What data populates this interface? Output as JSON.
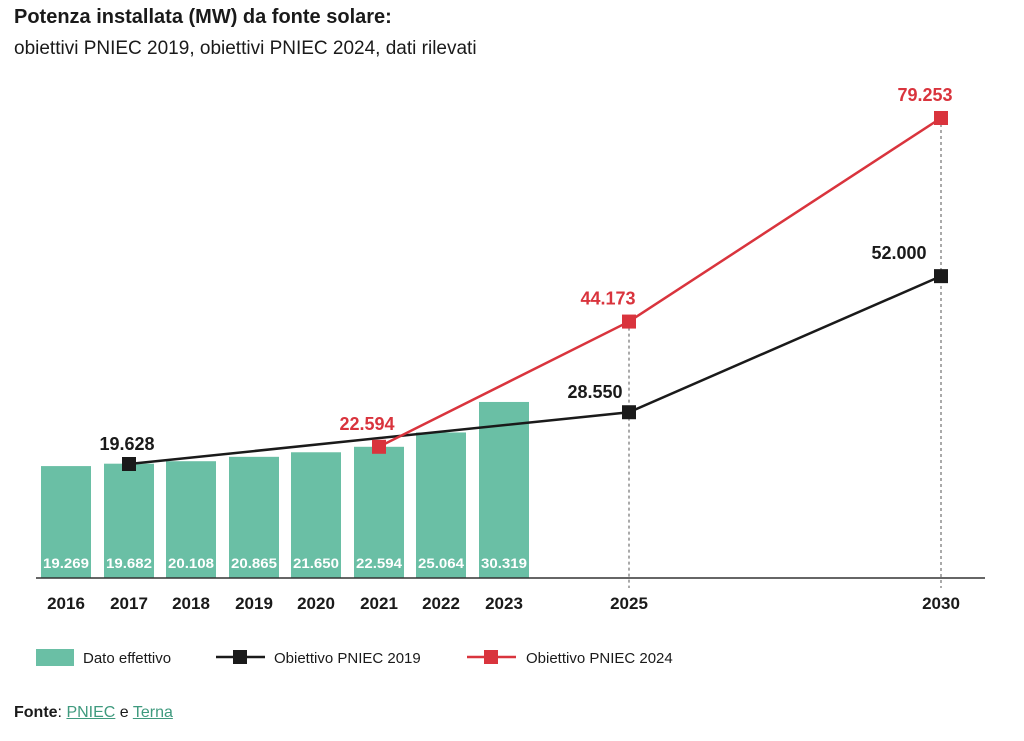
{
  "header": {
    "title": "Potenza installata (MW) da fonte solare:",
    "subtitle": "obiettivi PNIEC 2019, obiettivi PNIEC 2024, dati rilevati"
  },
  "colors": {
    "bar": "#6abfa5",
    "pniec2019": "#1a1a1a",
    "pniec2024": "#d9343d",
    "link": "#3f9a7e"
  },
  "source": {
    "label": "Fonte",
    "sep": ": ",
    "link1": "PNIEC",
    "and": " e ",
    "link2": "Terna"
  },
  "chart_data": {
    "type": "bar",
    "x_tick_labels": [
      "2016",
      "2017",
      "2018",
      "2019",
      "2020",
      "2021",
      "2022",
      "2023",
      "2025",
      "2030"
    ],
    "bars": {
      "name": "Dato effettivo",
      "x": [
        "2016",
        "2017",
        "2018",
        "2019",
        "2020",
        "2021",
        "2022",
        "2023"
      ],
      "values": [
        19269,
        19682,
        20108,
        20865,
        21650,
        22594,
        25064,
        30319
      ],
      "labels": [
        "19.269",
        "19.682",
        "20.108",
        "20.865",
        "21.650",
        "22.594",
        "25.064",
        "30.319"
      ]
    },
    "series": [
      {
        "name": "Obiettivo PNIEC 2019",
        "type": "line",
        "x": [
          "2017",
          "2025",
          "2030"
        ],
        "values": [
          19628,
          28550,
          52000
        ],
        "labels": [
          "19.628",
          "28.550",
          "52.000"
        ]
      },
      {
        "name": "Obiettivo PNIEC 2024",
        "type": "line",
        "x": [
          "2021",
          "2025",
          "2030"
        ],
        "values": [
          22594,
          44173,
          79253
        ],
        "labels": [
          "22.594",
          "44.173",
          "79.253"
        ]
      }
    ],
    "legend": [
      "Dato effettivo",
      "Obiettivo PNIEC 2019",
      "Obiettivo PNIEC 2024"
    ],
    "legend_position": "bottom-left",
    "grid": false
  }
}
